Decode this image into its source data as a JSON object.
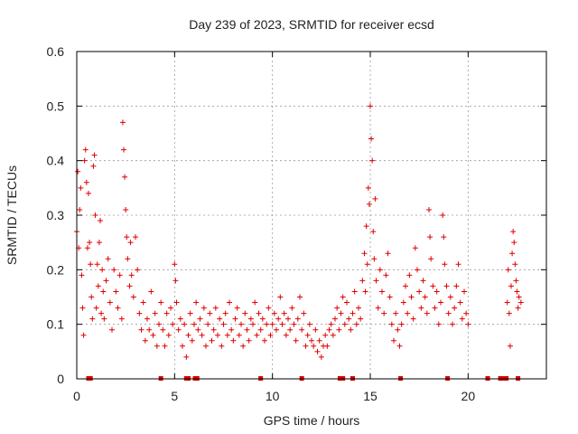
{
  "chart_data": {
    "type": "scatter",
    "title": "Day 239 of 2023, SRMTID for receiver ecsd",
    "xlabel": "GPS time / hours",
    "ylabel": "SRMTID / TECUs",
    "xlim": [
      0,
      24
    ],
    "ylim": [
      0,
      0.6
    ],
    "x_ticks": [
      0,
      5,
      10,
      15,
      20
    ],
    "x_tick_labels": [
      "0",
      "5",
      "10",
      "15",
      "20"
    ],
    "y_ticks": [
      0,
      0.1,
      0.2,
      0.3,
      0.4,
      0.5,
      0.6
    ],
    "y_tick_labels": [
      "0",
      "0.1",
      "0.2",
      "0.3",
      "0.4",
      "0.5",
      "0.6"
    ],
    "grid": true,
    "marker": "+",
    "color": "#e00000",
    "series": [
      {
        "name": "SRMTID",
        "points": [
          [
            0.0,
            0.27
          ],
          [
            0.05,
            0.38
          ],
          [
            0.1,
            0.24
          ],
          [
            0.15,
            0.31
          ],
          [
            0.2,
            0.35
          ],
          [
            0.25,
            0.19
          ],
          [
            0.3,
            0.13
          ],
          [
            0.35,
            0.08
          ],
          [
            0.4,
            0.4
          ],
          [
            0.45,
            0.42
          ],
          [
            0.5,
            0.36
          ],
          [
            0.55,
            0.24
          ],
          [
            0.6,
            0.34
          ],
          [
            0.65,
            0.25
          ],
          [
            0.7,
            0.21
          ],
          [
            0.75,
            0.15
          ],
          [
            0.8,
            0.11
          ],
          [
            0.85,
            0.39
          ],
          [
            0.9,
            0.41
          ],
          [
            0.95,
            0.3
          ],
          [
            1.0,
            0.13
          ],
          [
            1.05,
            0.21
          ],
          [
            1.1,
            0.17
          ],
          [
            1.15,
            0.25
          ],
          [
            1.2,
            0.29
          ],
          [
            1.25,
            0.12
          ],
          [
            1.3,
            0.2
          ],
          [
            1.35,
            0.16
          ],
          [
            1.4,
            0.11
          ],
          [
            1.5,
            0.18
          ],
          [
            1.6,
            0.22
          ],
          [
            1.7,
            0.14
          ],
          [
            1.8,
            0.09
          ],
          [
            1.9,
            0.2
          ],
          [
            2.0,
            0.16
          ],
          [
            2.1,
            0.13
          ],
          [
            2.2,
            0.19
          ],
          [
            2.3,
            0.11
          ],
          [
            2.35,
            0.47
          ],
          [
            2.4,
            0.42
          ],
          [
            2.45,
            0.37
          ],
          [
            2.5,
            0.31
          ],
          [
            2.55,
            0.26
          ],
          [
            2.6,
            0.22
          ],
          [
            2.7,
            0.17
          ],
          [
            2.75,
            0.25
          ],
          [
            2.8,
            0.19
          ],
          [
            2.9,
            0.15
          ],
          [
            3.0,
            0.26
          ],
          [
            3.1,
            0.2
          ],
          [
            3.2,
            0.12
          ],
          [
            3.3,
            0.09
          ],
          [
            3.4,
            0.14
          ],
          [
            3.5,
            0.07
          ],
          [
            3.6,
            0.11
          ],
          [
            3.7,
            0.09
          ],
          [
            3.8,
            0.16
          ],
          [
            3.9,
            0.08
          ],
          [
            4.0,
            0.12
          ],
          [
            4.1,
            0.06
          ],
          [
            4.2,
            0.1
          ],
          [
            4.3,
            0.14
          ],
          [
            4.4,
            0.09
          ],
          [
            4.5,
            0.06
          ],
          [
            4.6,
            0.12
          ],
          [
            4.7,
            0.08
          ],
          [
            4.8,
            0.13
          ],
          [
            4.9,
            0.1
          ],
          [
            5.0,
            0.21
          ],
          [
            5.05,
            0.18
          ],
          [
            5.1,
            0.14
          ],
          [
            5.2,
            0.09
          ],
          [
            5.3,
            0.11
          ],
          [
            5.4,
            0.06
          ],
          [
            5.5,
            0.1
          ],
          [
            5.6,
            0.04
          ],
          [
            5.7,
            0.08
          ],
          [
            5.8,
            0.12
          ],
          [
            5.9,
            0.07
          ],
          [
            6.0,
            0.1
          ],
          [
            6.1,
            0.14
          ],
          [
            6.2,
            0.09
          ],
          [
            6.3,
            0.11
          ],
          [
            6.4,
            0.08
          ],
          [
            6.5,
            0.13
          ],
          [
            6.6,
            0.06
          ],
          [
            6.7,
            0.1
          ],
          [
            6.8,
            0.12
          ],
          [
            6.9,
            0.07
          ],
          [
            7.0,
            0.09
          ],
          [
            7.1,
            0.13
          ],
          [
            7.2,
            0.08
          ],
          [
            7.3,
            0.11
          ],
          [
            7.4,
            0.06
          ],
          [
            7.5,
            0.1
          ],
          [
            7.6,
            0.12
          ],
          [
            7.7,
            0.08
          ],
          [
            7.8,
            0.14
          ],
          [
            7.9,
            0.09
          ],
          [
            8.0,
            0.07
          ],
          [
            8.1,
            0.11
          ],
          [
            8.2,
            0.13
          ],
          [
            8.3,
            0.08
          ],
          [
            8.4,
            0.1
          ],
          [
            8.5,
            0.06
          ],
          [
            8.6,
            0.12
          ],
          [
            8.7,
            0.09
          ],
          [
            8.8,
            0.07
          ],
          [
            8.9,
            0.11
          ],
          [
            9.0,
            0.1
          ],
          [
            9.1,
            0.14
          ],
          [
            9.2,
            0.08
          ],
          [
            9.3,
            0.12
          ],
          [
            9.4,
            0.09
          ],
          [
            9.5,
            0.11
          ],
          [
            9.6,
            0.07
          ],
          [
            9.7,
            0.1
          ],
          [
            9.8,
            0.13
          ],
          [
            9.9,
            0.08
          ],
          [
            10.0,
            0.1
          ],
          [
            10.1,
            0.12
          ],
          [
            10.2,
            0.09
          ],
          [
            10.3,
            0.11
          ],
          [
            10.4,
            0.15
          ],
          [
            10.5,
            0.1
          ],
          [
            10.6,
            0.12
          ],
          [
            10.7,
            0.08
          ],
          [
            10.8,
            0.11
          ],
          [
            10.9,
            0.09
          ],
          [
            11.0,
            0.13
          ],
          [
            11.1,
            0.1
          ],
          [
            11.2,
            0.07
          ],
          [
            11.3,
            0.11
          ],
          [
            11.4,
            0.15
          ],
          [
            11.5,
            0.09
          ],
          [
            11.6,
            0.12
          ],
          [
            11.7,
            0.06
          ],
          [
            11.8,
            0.08
          ],
          [
            11.9,
            0.1
          ],
          [
            12.0,
            0.07
          ],
          [
            12.1,
            0.06
          ],
          [
            12.2,
            0.09
          ],
          [
            12.3,
            0.05
          ],
          [
            12.4,
            0.07
          ],
          [
            12.5,
            0.04
          ],
          [
            12.6,
            0.06
          ],
          [
            12.7,
            0.08
          ],
          [
            12.8,
            0.06
          ],
          [
            12.9,
            0.09
          ],
          [
            13.0,
            0.1
          ],
          [
            13.1,
            0.08
          ],
          [
            13.2,
            0.11
          ],
          [
            13.3,
            0.13
          ],
          [
            13.4,
            0.09
          ],
          [
            13.5,
            0.12
          ],
          [
            13.6,
            0.15
          ],
          [
            13.7,
            0.1
          ],
          [
            13.8,
            0.14
          ],
          [
            13.9,
            0.11
          ],
          [
            14.0,
            0.09
          ],
          [
            14.1,
            0.12
          ],
          [
            14.2,
            0.16
          ],
          [
            14.3,
            0.1
          ],
          [
            14.4,
            0.13
          ],
          [
            14.5,
            0.11
          ],
          [
            14.6,
            0.18
          ],
          [
            14.7,
            0.23
          ],
          [
            14.75,
            0.16
          ],
          [
            14.8,
            0.28
          ],
          [
            14.85,
            0.21
          ],
          [
            14.9,
            0.35
          ],
          [
            14.95,
            0.32
          ],
          [
            15.0,
            0.5
          ],
          [
            15.05,
            0.44
          ],
          [
            15.1,
            0.4
          ],
          [
            15.15,
            0.27
          ],
          [
            15.2,
            0.22
          ],
          [
            15.25,
            0.33
          ],
          [
            15.3,
            0.18
          ],
          [
            15.4,
            0.13
          ],
          [
            15.5,
            0.2
          ],
          [
            15.6,
            0.16
          ],
          [
            15.7,
            0.12
          ],
          [
            15.8,
            0.19
          ],
          [
            15.9,
            0.23
          ],
          [
            16.0,
            0.15
          ],
          [
            16.1,
            0.1
          ],
          [
            16.2,
            0.07
          ],
          [
            16.3,
            0.12
          ],
          [
            16.4,
            0.09
          ],
          [
            16.5,
            0.06
          ],
          [
            16.6,
            0.1
          ],
          [
            16.7,
            0.14
          ],
          [
            16.8,
            0.17
          ],
          [
            16.9,
            0.12
          ],
          [
            17.0,
            0.19
          ],
          [
            17.1,
            0.15
          ],
          [
            17.2,
            0.11
          ],
          [
            17.3,
            0.24
          ],
          [
            17.4,
            0.2
          ],
          [
            17.5,
            0.16
          ],
          [
            17.6,
            0.13
          ],
          [
            17.7,
            0.18
          ],
          [
            17.8,
            0.15
          ],
          [
            17.9,
            0.12
          ],
          [
            18.0,
            0.31
          ],
          [
            18.05,
            0.26
          ],
          [
            18.1,
            0.22
          ],
          [
            18.2,
            0.17
          ],
          [
            18.3,
            0.13
          ],
          [
            18.4,
            0.16
          ],
          [
            18.5,
            0.1
          ],
          [
            18.6,
            0.14
          ],
          [
            18.7,
            0.3
          ],
          [
            18.75,
            0.26
          ],
          [
            18.8,
            0.21
          ],
          [
            18.9,
            0.17
          ],
          [
            19.0,
            0.12
          ],
          [
            19.1,
            0.15
          ],
          [
            19.2,
            0.1
          ],
          [
            19.3,
            0.13
          ],
          [
            19.4,
            0.17
          ],
          [
            19.5,
            0.21
          ],
          [
            19.6,
            0.14
          ],
          [
            19.7,
            0.11
          ],
          [
            19.8,
            0.16
          ],
          [
            19.9,
            0.12
          ],
          [
            20.0,
            0.1
          ],
          [
            22.0,
            0.14
          ],
          [
            22.05,
            0.2
          ],
          [
            22.1,
            0.12
          ],
          [
            22.15,
            0.06
          ],
          [
            22.2,
            0.17
          ],
          [
            22.25,
            0.23
          ],
          [
            22.3,
            0.27
          ],
          [
            22.35,
            0.25
          ],
          [
            22.4,
            0.21
          ],
          [
            22.45,
            0.18
          ],
          [
            22.5,
            0.16
          ],
          [
            22.55,
            0.13
          ],
          [
            22.6,
            0.15
          ],
          [
            22.7,
            0.14
          ]
        ]
      }
    ],
    "gap_markers": [
      0.6,
      0.7,
      4.3,
      5.6,
      5.7,
      6.05,
      6.15,
      9.4,
      11.5,
      13.45,
      13.6,
      14.1,
      16.55,
      18.95,
      21.0,
      21.65,
      21.85,
      21.95,
      22.55
    ]
  }
}
